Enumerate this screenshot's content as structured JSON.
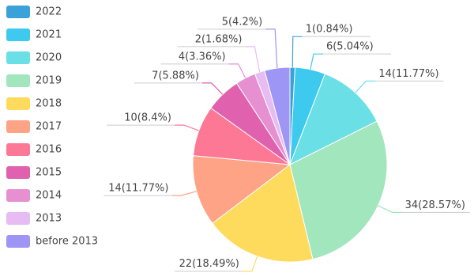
{
  "chart_data": {
    "type": "pie",
    "categories": [
      "2022",
      "2021",
      "2020",
      "2019",
      "2018",
      "2017",
      "2016",
      "2015",
      "2014",
      "2013",
      "before 2013"
    ],
    "values": [
      1,
      6,
      14,
      34,
      22,
      14,
      10,
      7,
      4,
      2,
      5
    ],
    "value_labels": [
      "1(0.84%)",
      "6(5.04%)",
      "14(11.77%)",
      "34(28.57%)",
      "22(18.49%)",
      "14(11.77%)",
      "10(8.4%)",
      "7(5.88%)",
      "4(3.36%)",
      "2(1.68%)",
      "5(4.2%)"
    ],
    "colors": [
      "#3ba1d9",
      "#3ec9ee",
      "#6ae0e6",
      "#a2e6bd",
      "#fedb5c",
      "#fea385",
      "#fd7894",
      "#e062ae",
      "#e690d1",
      "#e7bcf3",
      "#9d96f5"
    ],
    "legend": "left"
  }
}
